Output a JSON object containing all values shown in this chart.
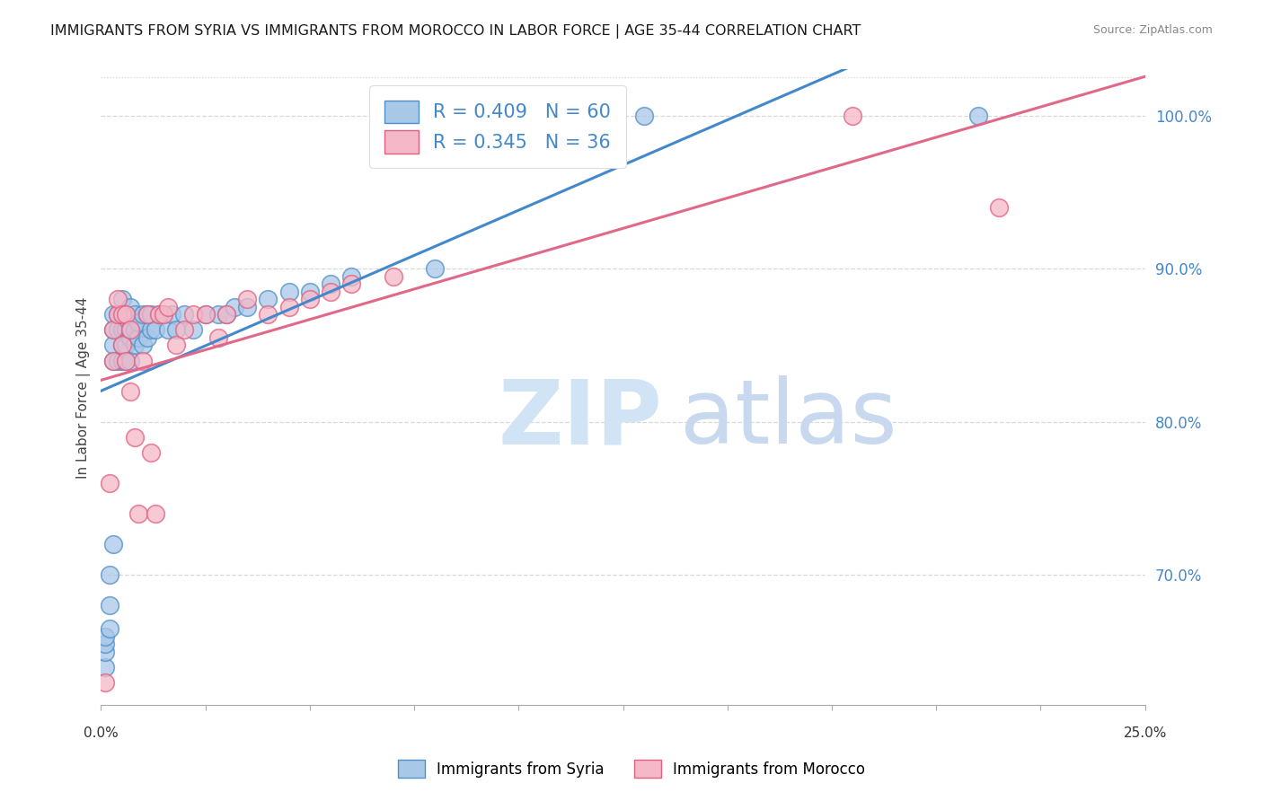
{
  "title": "IMMIGRANTS FROM SYRIA VS IMMIGRANTS FROM MOROCCO IN LABOR FORCE | AGE 35-44 CORRELATION CHART",
  "source": "Source: ZipAtlas.com",
  "ylabel": "In Labor Force | Age 35-44",
  "ytick_labels": [
    "70.0%",
    "80.0%",
    "90.0%",
    "100.0%"
  ],
  "ytick_values": [
    0.7,
    0.8,
    0.9,
    1.0
  ],
  "xlim": [
    0.0,
    0.25
  ],
  "ylim": [
    0.615,
    1.03
  ],
  "syria_color": "#a8c8e8",
  "morocco_color": "#f5b8c8",
  "syria_edge_color": "#5090c8",
  "morocco_edge_color": "#e06080",
  "syria_line_color": "#4488cc",
  "morocco_line_color": "#e06888",
  "grid_color": "#d8d8d8",
  "title_fontsize": 11.5,
  "syria_x": [
    0.001,
    0.001,
    0.001,
    0.001,
    0.002,
    0.002,
    0.002,
    0.003,
    0.003,
    0.003,
    0.003,
    0.003,
    0.004,
    0.004,
    0.004,
    0.005,
    0.005,
    0.005,
    0.005,
    0.005,
    0.006,
    0.006,
    0.006,
    0.006,
    0.007,
    0.007,
    0.007,
    0.007,
    0.008,
    0.008,
    0.008,
    0.009,
    0.009,
    0.01,
    0.01,
    0.011,
    0.011,
    0.012,
    0.012,
    0.013,
    0.014,
    0.015,
    0.016,
    0.017,
    0.018,
    0.02,
    0.022,
    0.025,
    0.028,
    0.03,
    0.032,
    0.035,
    0.04,
    0.045,
    0.05,
    0.055,
    0.06,
    0.08,
    0.13,
    0.21
  ],
  "syria_y": [
    0.64,
    0.65,
    0.655,
    0.66,
    0.665,
    0.68,
    0.7,
    0.72,
    0.84,
    0.85,
    0.86,
    0.87,
    0.84,
    0.86,
    0.87,
    0.84,
    0.85,
    0.86,
    0.87,
    0.88,
    0.84,
    0.85,
    0.86,
    0.87,
    0.84,
    0.855,
    0.86,
    0.875,
    0.85,
    0.86,
    0.87,
    0.855,
    0.865,
    0.85,
    0.87,
    0.855,
    0.87,
    0.86,
    0.87,
    0.86,
    0.87,
    0.87,
    0.86,
    0.87,
    0.86,
    0.87,
    0.86,
    0.87,
    0.87,
    0.87,
    0.875,
    0.875,
    0.88,
    0.885,
    0.885,
    0.89,
    0.895,
    0.9,
    1.0,
    1.0
  ],
  "morocco_x": [
    0.001,
    0.002,
    0.003,
    0.003,
    0.004,
    0.004,
    0.005,
    0.005,
    0.006,
    0.006,
    0.007,
    0.007,
    0.008,
    0.009,
    0.01,
    0.011,
    0.012,
    0.013,
    0.014,
    0.015,
    0.016,
    0.018,
    0.02,
    0.022,
    0.025,
    0.028,
    0.03,
    0.035,
    0.04,
    0.045,
    0.05,
    0.055,
    0.06,
    0.07,
    0.18,
    0.215
  ],
  "morocco_y": [
    0.63,
    0.76,
    0.84,
    0.86,
    0.87,
    0.88,
    0.85,
    0.87,
    0.84,
    0.87,
    0.82,
    0.86,
    0.79,
    0.74,
    0.84,
    0.87,
    0.78,
    0.74,
    0.87,
    0.87,
    0.875,
    0.85,
    0.86,
    0.87,
    0.87,
    0.855,
    0.87,
    0.88,
    0.87,
    0.875,
    0.88,
    0.885,
    0.89,
    0.895,
    1.0,
    0.94
  ]
}
